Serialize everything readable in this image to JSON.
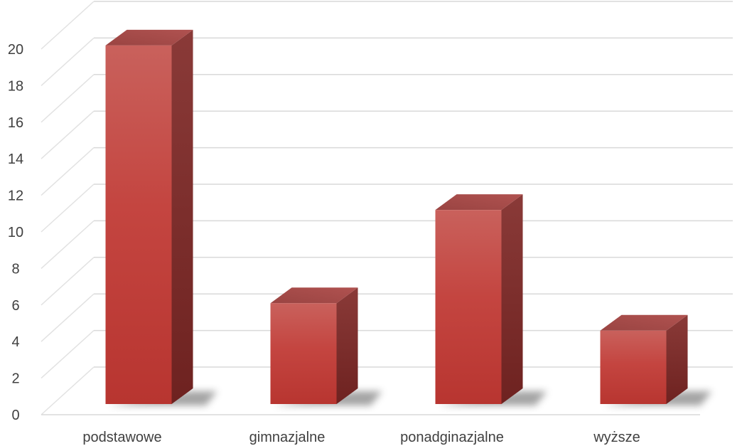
{
  "chart_data": {
    "type": "bar",
    "style": "3d-column",
    "categories": [
      "podstawowe",
      "gimnazjalne",
      "ponadginazjalne",
      "wyższe"
    ],
    "series": [
      {
        "values": [
          20.2,
          6.1,
          11.2,
          4.6
        ],
        "color": "#c0392b"
      }
    ],
    "ylim": [
      0,
      20
    ],
    "yticks": [
      0,
      2,
      4,
      6,
      8,
      10,
      12,
      14,
      16,
      18,
      20
    ],
    "ytick_labels": [
      "0",
      "2",
      "4",
      "6",
      "8",
      "10",
      "12",
      "14",
      "16",
      "18",
      "20"
    ],
    "grid": true,
    "legend": "none",
    "colors": {
      "bar_front": "#c0413c",
      "bar_top": "#9b3e3c",
      "bar_side": "#7a2a28",
      "grid": "#d9d9d9",
      "text": "#404040"
    }
  }
}
